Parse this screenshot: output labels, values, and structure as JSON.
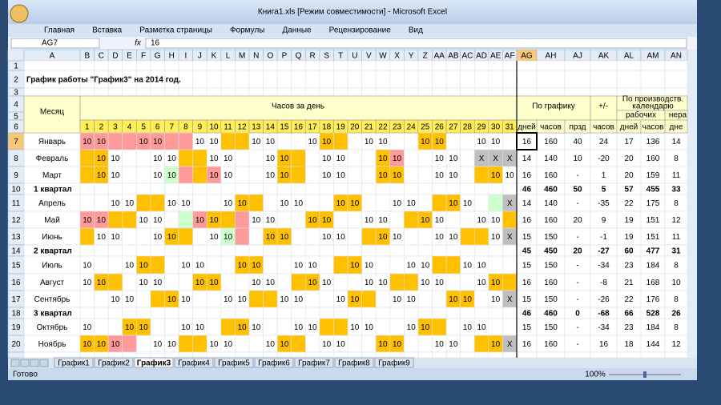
{
  "window": {
    "title": "Книга1.xls  [Режим совместимости] - Microsoft Excel",
    "ribbon_tabs": [
      "Главная",
      "Вставка",
      "Разметка страницы",
      "Формулы",
      "Данные",
      "Рецензирование",
      "Вид"
    ],
    "name_box": "AG7",
    "fx": "fx",
    "formula": "16"
  },
  "sheet": {
    "columns": [
      "A",
      "B",
      "C",
      "D",
      "E",
      "F",
      "G",
      "H",
      "I",
      "J",
      "K",
      "L",
      "M",
      "N",
      "O",
      "P",
      "Q",
      "R",
      "S",
      "T",
      "U",
      "V",
      "W",
      "X",
      "Y",
      "Z",
      "AA",
      "AB",
      "AC",
      "AD",
      "AE",
      "AF",
      "AG",
      "AH",
      "AJ",
      "AK",
      "AL",
      "AM",
      "AN"
    ],
    "row_numbers": [
      1,
      2,
      3,
      4,
      5,
      6,
      7,
      8,
      9,
      10,
      11,
      12,
      13,
      14,
      15,
      16,
      17,
      18,
      19,
      20
    ],
    "title": "График работы \"График3\" на 2014 год.",
    "header": {
      "month": "Месяц",
      "hours_per_day": "Часов за день",
      "by_schedule": "По графику",
      "diff": "+/-",
      "calendar": [
        "По производств.",
        "календарю"
      ],
      "working": "рабочих",
      "non_working": "нера",
      "sub": [
        "дней",
        "часов",
        "прзд",
        "часов",
        "дней",
        "часов",
        "дне"
      ]
    },
    "day_numbers": [
      1,
      2,
      3,
      4,
      5,
      6,
      7,
      8,
      9,
      10,
      11,
      12,
      13,
      14,
      15,
      16,
      17,
      18,
      19,
      20,
      21,
      22,
      23,
      24,
      25,
      26,
      27,
      28,
      29,
      30,
      31
    ],
    "fill_colors": {
      "o": "#ffc000",
      "p": "#ff9a9a",
      "g": "#ccffcc",
      "x": "#bfbfbf"
    },
    "rows": [
      {
        "month": "Январь",
        "fills": "pppppppp..oo.....oo.....oo.....",
        "days": [
          10,
          10,
          null,
          null,
          10,
          10,
          null,
          null,
          10,
          10,
          null,
          null,
          10,
          10,
          null,
          null,
          10,
          10,
          null,
          null,
          10,
          10,
          null,
          null,
          10,
          10,
          null,
          null,
          10,
          10,
          null
        ],
        "totals": [
          16,
          160,
          40,
          24,
          17,
          136,
          14
        ]
      },
      {
        "month": "Февраль",
        "fills": "oo.....oo.....oo.....op.....xxx",
        "days": [
          null,
          10,
          10,
          null,
          null,
          10,
          10,
          null,
          null,
          10,
          10,
          null,
          null,
          10,
          10,
          null,
          null,
          10,
          10,
          null,
          null,
          10,
          10,
          null,
          null,
          10,
          10,
          null,
          "X",
          "X",
          "X"
        ],
        "totals": [
          14,
          140,
          10,
          -20,
          20,
          160,
          8
        ]
      },
      {
        "month": "Март",
        "fills": "oo....gpop....oo.....oo.....oo.",
        "days": [
          null,
          10,
          10,
          null,
          null,
          10,
          10,
          null,
          null,
          10,
          10,
          null,
          null,
          10,
          10,
          null,
          null,
          10,
          10,
          null,
          null,
          10,
          10,
          null,
          null,
          10,
          10,
          null,
          null,
          10,
          10
        ],
        "totals": [
          16,
          160,
          "-",
          1,
          20,
          159,
          11
        ]
      },
      {
        "quarter": "1 квартал",
        "totals": [
          46,
          460,
          50,
          5,
          57,
          455,
          33
        ]
      },
      {
        "month": "Апрель",
        "fills": "....oo.....oo.....oo.....oo..gx",
        "days": [
          null,
          null,
          10,
          10,
          null,
          null,
          10,
          10,
          null,
          null,
          10,
          10,
          null,
          null,
          10,
          10,
          null,
          null,
          10,
          10,
          null,
          null,
          10,
          10,
          null,
          null,
          10,
          10,
          null,
          null,
          "X"
        ],
        "totals": [
          14,
          140,
          "-",
          -35,
          22,
          175,
          8
        ]
      },
      {
        "month": "Май",
        "fills": "ppoo...gpoop....oo.....oo.....o",
        "days": [
          10,
          10,
          null,
          null,
          10,
          10,
          null,
          null,
          10,
          10,
          null,
          null,
          10,
          10,
          null,
          null,
          10,
          10,
          null,
          null,
          10,
          10,
          null,
          null,
          10,
          10,
          null,
          null,
          10,
          10,
          null
        ],
        "totals": [
          16,
          160,
          20,
          9,
          19,
          151,
          12
        ]
      },
      {
        "month": "Июнь",
        "fills": "o.....oo..gp.oo.....oo.....oo.x",
        "days": [
          null,
          10,
          10,
          null,
          null,
          10,
          10,
          null,
          null,
          10,
          10,
          null,
          null,
          10,
          10,
          null,
          null,
          10,
          10,
          null,
          null,
          10,
          10,
          null,
          null,
          10,
          10,
          null,
          null,
          10,
          "X"
        ],
        "totals": [
          15,
          150,
          "-",
          -1,
          19,
          151,
          11
        ]
      },
      {
        "quarter": "2 квартал",
        "totals": [
          45,
          450,
          20,
          -27,
          60,
          477,
          31
        ]
      },
      {
        "month": "Июль",
        "fills": "....oo.....oo.....oo.....oo....",
        "days": [
          10,
          null,
          null,
          10,
          10,
          null,
          null,
          10,
          10,
          null,
          null,
          10,
          10,
          null,
          null,
          10,
          10,
          null,
          null,
          10,
          10,
          null,
          null,
          10,
          10,
          null,
          null,
          10,
          10,
          null,
          null
        ],
        "totals": [
          15,
          150,
          "-",
          -34,
          23,
          184,
          8
        ]
      },
      {
        "month": "Август",
        "fills": ".oo.....oo.....oo.....oo.....oo",
        "days": [
          10,
          10,
          null,
          null,
          10,
          10,
          null,
          null,
          10,
          10,
          null,
          null,
          10,
          10,
          null,
          null,
          10,
          10,
          null,
          null,
          10,
          10,
          null,
          null,
          10,
          10,
          null,
          null,
          10,
          10,
          null
        ],
        "totals": [
          16,
          160,
          "-",
          -8,
          21,
          168,
          10
        ]
      },
      {
        "month": "Сентябрь",
        "fills": ".....oo.....oo.....oo.....oo..x",
        "days": [
          null,
          null,
          10,
          10,
          null,
          null,
          10,
          10,
          null,
          null,
          10,
          10,
          null,
          null,
          10,
          10,
          null,
          null,
          10,
          10,
          null,
          null,
          10,
          10,
          null,
          null,
          10,
          10,
          null,
          10,
          "X"
        ],
        "totals": [
          15,
          150,
          "-",
          -26,
          22,
          176,
          8
        ]
      },
      {
        "quarter": "3 квартал",
        "totals": [
          46,
          460,
          0,
          -68,
          66,
          528,
          26
        ]
      },
      {
        "month": "Октябрь",
        "fills": "...oo.....oo.....oo.....oo.....",
        "days": [
          10,
          null,
          null,
          10,
          10,
          null,
          null,
          10,
          10,
          null,
          null,
          10,
          10,
          null,
          null,
          10,
          10,
          null,
          null,
          10,
          10,
          null,
          null,
          10,
          10,
          null,
          null,
          10,
          10,
          null,
          null
        ],
        "totals": [
          15,
          150,
          "-",
          -34,
          23,
          184,
          8
        ]
      },
      {
        "month": "Ноябрь",
        "fills": "oopp...oo.....oo.....oo.....oox",
        "days": [
          10,
          10,
          10,
          null,
          null,
          10,
          10,
          null,
          null,
          10,
          10,
          null,
          null,
          10,
          10,
          null,
          null,
          10,
          10,
          null,
          null,
          10,
          10,
          null,
          null,
          10,
          10,
          null,
          null,
          10,
          "X"
        ],
        "totals": [
          16,
          160,
          "-",
          16,
          18,
          144,
          12
        ]
      }
    ]
  },
  "sheet_tabs": {
    "tabs": [
      "График1",
      "График2",
      "График3",
      "График4",
      "График5",
      "График6",
      "График7",
      "График8",
      "График9"
    ],
    "active": 2
  },
  "status": {
    "ready": "Готово",
    "zoom": "100%"
  }
}
